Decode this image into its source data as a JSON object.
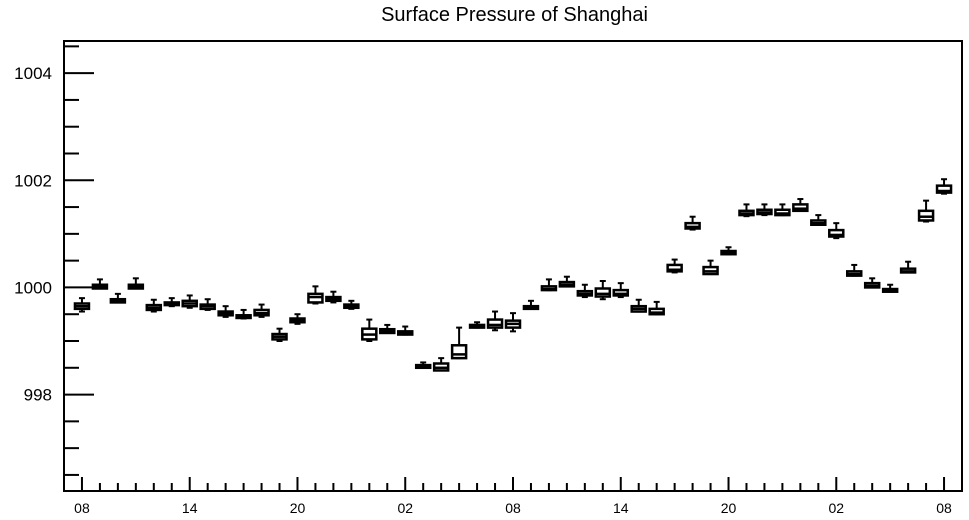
{
  "chart_data": {
    "type": "boxplot",
    "title": "Surface Pressure of Shanghai",
    "xlabel": "",
    "ylabel": "",
    "ylim": [
      996.2,
      1004.6
    ],
    "y_major_ticks": [
      998,
      1000,
      1002,
      1004
    ],
    "y_minor_step": 0.5,
    "x_tick_labels": [
      "08",
      "14",
      "20",
      "02",
      "08",
      "14",
      "20",
      "02",
      "08"
    ],
    "x_tick_positions": [
      0,
      6,
      12,
      18,
      24,
      30,
      36,
      42,
      48
    ],
    "xlim": [
      -1,
      49
    ],
    "grid": false,
    "boxes": [
      {
        "x": 0,
        "min": 999.55,
        "q1": 999.6,
        "median": 999.65,
        "q3": 999.7,
        "max": 999.8
      },
      {
        "x": 1,
        "min": 999.98,
        "q1": 999.98,
        "median": 1000.02,
        "q3": 1000.05,
        "max": 1000.15
      },
      {
        "x": 2,
        "min": 999.72,
        "q1": 999.72,
        "median": 999.75,
        "q3": 999.78,
        "max": 999.88
      },
      {
        "x": 3,
        "min": 999.98,
        "q1": 999.98,
        "median": 1000.02,
        "q3": 1000.05,
        "max": 1000.17
      },
      {
        "x": 4,
        "min": 999.55,
        "q1": 999.58,
        "median": 999.62,
        "q3": 999.67,
        "max": 999.77
      },
      {
        "x": 5,
        "min": 999.65,
        "q1": 999.67,
        "median": 999.7,
        "q3": 999.72,
        "max": 999.8
      },
      {
        "x": 6,
        "min": 999.62,
        "q1": 999.65,
        "median": 999.7,
        "q3": 999.75,
        "max": 999.85
      },
      {
        "x": 7,
        "min": 999.58,
        "q1": 999.6,
        "median": 999.65,
        "q3": 999.68,
        "max": 999.78
      },
      {
        "x": 8,
        "min": 999.45,
        "q1": 999.48,
        "median": 999.52,
        "q3": 999.55,
        "max": 999.65
      },
      {
        "x": 9,
        "min": 999.42,
        "q1": 999.43,
        "median": 999.45,
        "q3": 999.48,
        "max": 999.58
      },
      {
        "x": 10,
        "min": 999.45,
        "q1": 999.48,
        "median": 999.52,
        "q3": 999.58,
        "max": 999.68
      },
      {
        "x": 11,
        "min": 999.0,
        "q1": 999.03,
        "median": 999.08,
        "q3": 999.13,
        "max": 999.23
      },
      {
        "x": 12,
        "min": 999.32,
        "q1": 999.35,
        "median": 999.38,
        "q3": 999.42,
        "max": 999.5
      },
      {
        "x": 13,
        "min": 999.7,
        "q1": 999.72,
        "median": 999.82,
        "q3": 999.88,
        "max": 1000.02
      },
      {
        "x": 14,
        "min": 999.72,
        "q1": 999.75,
        "median": 999.78,
        "q3": 999.82,
        "max": 999.92
      },
      {
        "x": 15,
        "min": 999.6,
        "q1": 999.62,
        "median": 999.65,
        "q3": 999.68,
        "max": 999.75
      },
      {
        "x": 16,
        "min": 999.0,
        "q1": 999.03,
        "median": 999.12,
        "q3": 999.23,
        "max": 999.4
      },
      {
        "x": 17,
        "min": 999.15,
        "q1": 999.15,
        "median": 999.18,
        "q3": 999.22,
        "max": 999.3
      },
      {
        "x": 18,
        "min": 999.12,
        "q1": 999.12,
        "median": 999.15,
        "q3": 999.18,
        "max": 999.27
      },
      {
        "x": 19,
        "min": 998.5,
        "q1": 998.5,
        "median": 998.52,
        "q3": 998.55,
        "max": 998.6
      },
      {
        "x": 20,
        "min": 998.45,
        "q1": 998.45,
        "median": 998.5,
        "q3": 998.58,
        "max": 998.68
      },
      {
        "x": 21,
        "min": 998.68,
        "q1": 998.68,
        "median": 998.75,
        "q3": 998.92,
        "max": 999.25
      },
      {
        "x": 22,
        "min": 999.25,
        "q1": 999.25,
        "median": 999.27,
        "q3": 999.3,
        "max": 999.35
      },
      {
        "x": 23,
        "min": 999.2,
        "q1": 999.25,
        "median": 999.3,
        "q3": 999.4,
        "max": 999.55
      },
      {
        "x": 24,
        "min": 999.18,
        "q1": 999.25,
        "median": 999.32,
        "q3": 999.38,
        "max": 999.52
      },
      {
        "x": 25,
        "min": 999.6,
        "q1": 999.6,
        "median": 999.62,
        "q3": 999.65,
        "max": 999.75
      },
      {
        "x": 26,
        "min": 999.95,
        "q1": 999.95,
        "median": 999.97,
        "q3": 1000.02,
        "max": 1000.15
      },
      {
        "x": 27,
        "min": 1000.02,
        "q1": 1000.02,
        "median": 1000.05,
        "q3": 1000.1,
        "max": 1000.2
      },
      {
        "x": 28,
        "min": 999.82,
        "q1": 999.85,
        "median": 999.88,
        "q3": 999.93,
        "max": 1000.05
      },
      {
        "x": 29,
        "min": 999.78,
        "q1": 999.83,
        "median": 999.88,
        "q3": 999.98,
        "max": 1000.12
      },
      {
        "x": 30,
        "min": 999.82,
        "q1": 999.85,
        "median": 999.88,
        "q3": 999.95,
        "max": 1000.08
      },
      {
        "x": 31,
        "min": 999.55,
        "q1": 999.55,
        "median": 999.6,
        "q3": 999.65,
        "max": 999.77
      },
      {
        "x": 32,
        "min": 999.5,
        "q1": 999.5,
        "median": 999.53,
        "q3": 999.6,
        "max": 999.73
      },
      {
        "x": 33,
        "min": 1000.28,
        "q1": 1000.3,
        "median": 1000.33,
        "q3": 1000.42,
        "max": 1000.52
      },
      {
        "x": 34,
        "min": 1001.08,
        "q1": 1001.1,
        "median": 1001.13,
        "q3": 1001.2,
        "max": 1001.32
      },
      {
        "x": 35,
        "min": 1000.25,
        "q1": 1000.25,
        "median": 1000.3,
        "q3": 1000.38,
        "max": 1000.5
      },
      {
        "x": 36,
        "min": 1000.62,
        "q1": 1000.62,
        "median": 1000.65,
        "q3": 1000.68,
        "max": 1000.75
      },
      {
        "x": 37,
        "min": 1001.33,
        "q1": 1001.35,
        "median": 1001.38,
        "q3": 1001.43,
        "max": 1001.55
      },
      {
        "x": 38,
        "min": 1001.35,
        "q1": 1001.37,
        "median": 1001.4,
        "q3": 1001.45,
        "max": 1001.55
      },
      {
        "x": 39,
        "min": 1001.35,
        "q1": 1001.35,
        "median": 1001.38,
        "q3": 1001.45,
        "max": 1001.55
      },
      {
        "x": 40,
        "min": 1001.43,
        "q1": 1001.43,
        "median": 1001.47,
        "q3": 1001.55,
        "max": 1001.65
      },
      {
        "x": 41,
        "min": 1001.17,
        "q1": 1001.17,
        "median": 1001.2,
        "q3": 1001.25,
        "max": 1001.35
      },
      {
        "x": 42,
        "min": 1000.92,
        "q1": 1000.95,
        "median": 1000.98,
        "q3": 1001.07,
        "max": 1001.2
      },
      {
        "x": 43,
        "min": 1000.22,
        "q1": 1000.22,
        "median": 1000.25,
        "q3": 1000.3,
        "max": 1000.42
      },
      {
        "x": 44,
        "min": 1000.0,
        "q1": 1000.0,
        "median": 1000.03,
        "q3": 1000.08,
        "max": 1000.17
      },
      {
        "x": 45,
        "min": 999.92,
        "q1": 999.92,
        "median": 999.95,
        "q3": 999.97,
        "max": 1000.05
      },
      {
        "x": 46,
        "min": 1000.28,
        "q1": 1000.28,
        "median": 1000.3,
        "q3": 1000.35,
        "max": 1000.48
      },
      {
        "x": 47,
        "min": 1001.23,
        "q1": 1001.25,
        "median": 1001.32,
        "q3": 1001.43,
        "max": 1001.62
      },
      {
        "x": 48,
        "min": 1001.75,
        "q1": 1001.77,
        "median": 1001.8,
        "q3": 1001.9,
        "max": 1002.02
      }
    ]
  }
}
